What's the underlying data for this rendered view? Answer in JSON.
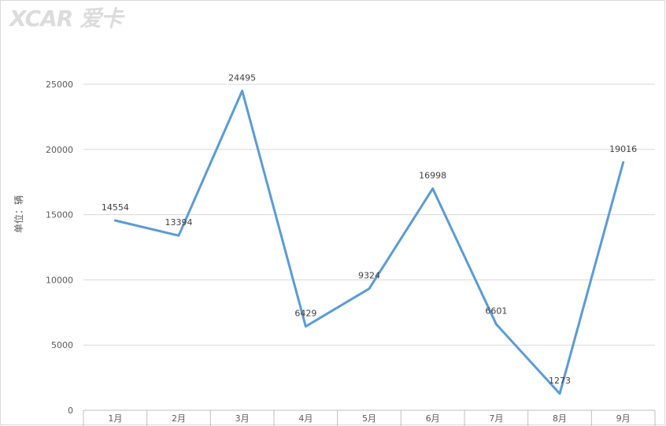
{
  "watermark": "XCAR 爱卡",
  "chart_data": {
    "type": "line",
    "title": "",
    "xlabel": "",
    "ylabel": "单位：辆",
    "categories": [
      "1月",
      "2月",
      "3月",
      "4月",
      "5月",
      "6月",
      "7月",
      "8月",
      "9月"
    ],
    "values": [
      14554,
      13394,
      24495,
      6429,
      9324,
      16998,
      6601,
      1273,
      19016
    ],
    "ylim": [
      0,
      25000
    ],
    "yticks": [
      0,
      5000,
      10000,
      15000,
      20000,
      25000
    ],
    "grid": true,
    "line_color": "#5b9bd5"
  }
}
